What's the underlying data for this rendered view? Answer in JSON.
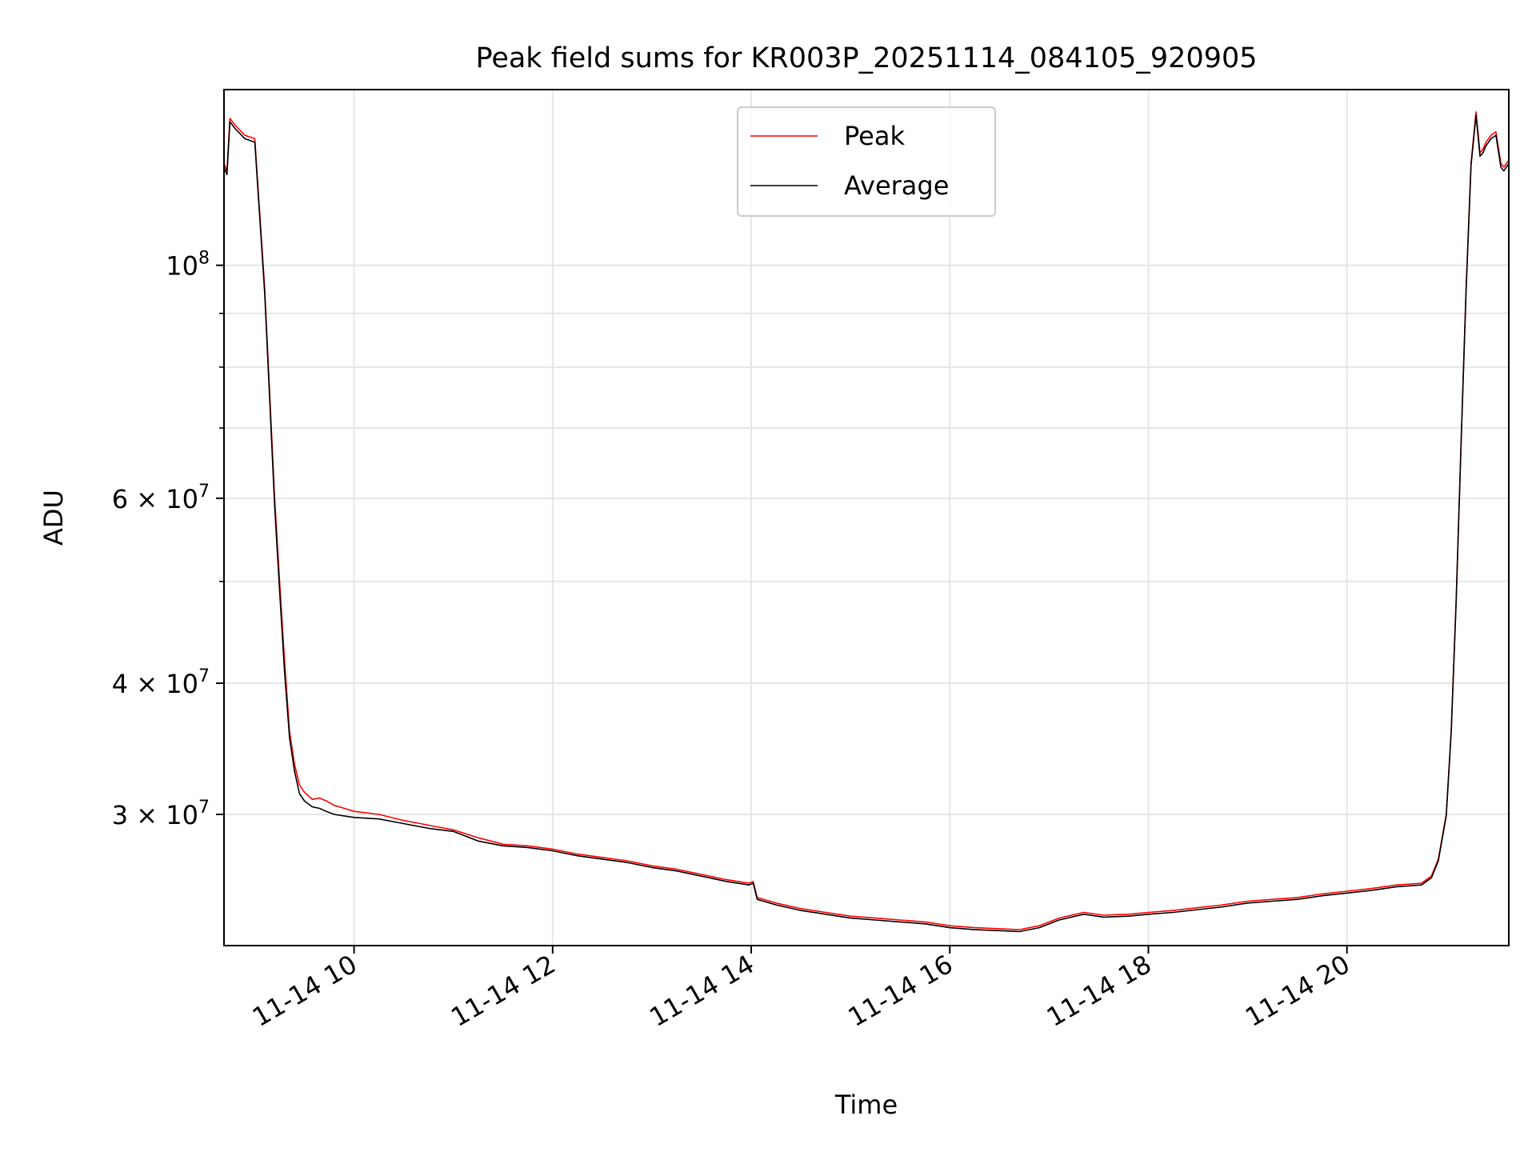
{
  "chart_data": {
    "type": "line",
    "title": "Peak field sums for KR003P_20251114_084105_920905",
    "xlabel": "Time",
    "ylabel": "ADU",
    "yscale": "log",
    "ylim": [
      22500000,
      147000000
    ],
    "x_unit": "hours since 11-14 00:00",
    "xlim": [
      8.69,
      21.63
    ],
    "x_ticks": [
      {
        "value": 10,
        "label": "11-14 10"
      },
      {
        "value": 12,
        "label": "11-14 12"
      },
      {
        "value": 14,
        "label": "11-14 14"
      },
      {
        "value": 16,
        "label": "11-14 16"
      },
      {
        "value": 18,
        "label": "11-14 18"
      },
      {
        "value": 20,
        "label": "11-14 20"
      }
    ],
    "y_ticks": [
      {
        "value": 100000000,
        "mantissa": "",
        "base": "10",
        "exp": "8"
      },
      {
        "value": 60000000,
        "mantissa": "6 × ",
        "base": "10",
        "exp": "7"
      },
      {
        "value": 40000000,
        "mantissa": "4 × ",
        "base": "10",
        "exp": "7"
      },
      {
        "value": 30000000,
        "mantissa": "3 × ",
        "base": "10",
        "exp": "7"
      }
    ],
    "y_minor_ticks": [
      50000000,
      70000000,
      80000000,
      90000000
    ],
    "grid": true,
    "legend": {
      "position": "upper-center",
      "entries": [
        "Peak",
        "Average"
      ]
    },
    "series": [
      {
        "name": "Peak",
        "color": "#ff0000",
        "x": [
          8.69,
          8.72,
          8.75,
          8.8,
          8.9,
          9.0,
          9.1,
          9.2,
          9.25,
          9.3,
          9.35,
          9.4,
          9.45,
          9.5,
          9.58,
          9.65,
          9.72,
          9.8,
          9.9,
          10.0,
          10.25,
          10.5,
          10.75,
          11.0,
          11.25,
          11.5,
          11.75,
          12.0,
          12.25,
          12.5,
          12.75,
          13.0,
          13.25,
          13.5,
          13.75,
          13.98,
          14.02,
          14.06,
          14.25,
          14.5,
          14.75,
          15.0,
          15.25,
          15.5,
          15.75,
          16.0,
          16.25,
          16.5,
          16.7,
          16.9,
          17.1,
          17.35,
          17.55,
          17.8,
          18.0,
          18.25,
          18.5,
          18.75,
          19.0,
          19.25,
          19.5,
          19.75,
          20.0,
          20.25,
          20.5,
          20.75,
          20.85,
          20.92,
          21.0,
          21.05,
          21.1,
          21.15,
          21.2,
          21.25,
          21.3,
          21.34,
          21.37,
          21.4,
          21.45,
          21.5,
          21.55,
          21.58,
          21.63
        ],
        "values": [
          125000000,
          123000000,
          138000000,
          136000000,
          133000000,
          132000000,
          95000000,
          60000000,
          50000000,
          42000000,
          36000000,
          33500000,
          32000000,
          31500000,
          31000000,
          31100000,
          30900000,
          30600000,
          30400000,
          30200000,
          30000000,
          29600000,
          29300000,
          29000000,
          28500000,
          28100000,
          28000000,
          27800000,
          27500000,
          27300000,
          27100000,
          26800000,
          26600000,
          26300000,
          26000000,
          25800000,
          25900000,
          25000000,
          24700000,
          24400000,
          24200000,
          24000000,
          23900000,
          23800000,
          23700000,
          23500000,
          23400000,
          23350000,
          23300000,
          23500000,
          23900000,
          24200000,
          24050000,
          24100000,
          24200000,
          24300000,
          24450000,
          24600000,
          24800000,
          24900000,
          25000000,
          25200000,
          25350000,
          25500000,
          25700000,
          25800000,
          26200000,
          27200000,
          30000000,
          36000000,
          48000000,
          68000000,
          95000000,
          125000000,
          140000000,
          128000000,
          129000000,
          131000000,
          133000000,
          134000000,
          125000000,
          124000000,
          126000000
        ]
      },
      {
        "name": "Average",
        "color": "#000000",
        "x": [
          8.69,
          8.72,
          8.75,
          8.8,
          8.9,
          9.0,
          9.1,
          9.2,
          9.25,
          9.3,
          9.35,
          9.4,
          9.45,
          9.5,
          9.58,
          9.65,
          9.72,
          9.8,
          9.9,
          10.0,
          10.25,
          10.5,
          10.75,
          11.0,
          11.25,
          11.5,
          11.75,
          12.0,
          12.25,
          12.5,
          12.75,
          13.0,
          13.25,
          13.5,
          13.75,
          13.98,
          14.02,
          14.06,
          14.25,
          14.5,
          14.75,
          15.0,
          15.25,
          15.5,
          15.75,
          16.0,
          16.25,
          16.5,
          16.7,
          16.9,
          17.1,
          17.35,
          17.55,
          17.8,
          18.0,
          18.25,
          18.5,
          18.75,
          19.0,
          19.25,
          19.5,
          19.75,
          20.0,
          20.25,
          20.5,
          20.75,
          20.85,
          20.92,
          21.0,
          21.05,
          21.1,
          21.15,
          21.2,
          21.25,
          21.3,
          21.34,
          21.37,
          21.4,
          21.45,
          21.5,
          21.55,
          21.58,
          21.63
        ],
        "values": [
          124000000,
          122000000,
          137000000,
          135000000,
          132000000,
          131000000,
          94000000,
          59000000,
          49000000,
          41000000,
          35500000,
          33000000,
          31400000,
          30900000,
          30500000,
          30400000,
          30200000,
          30000000,
          29900000,
          29800000,
          29700000,
          29400000,
          29100000,
          28900000,
          28300000,
          28000000,
          27900000,
          27700000,
          27400000,
          27200000,
          27000000,
          26700000,
          26500000,
          26200000,
          25900000,
          25700000,
          25800000,
          24900000,
          24600000,
          24300000,
          24100000,
          23900000,
          23800000,
          23700000,
          23600000,
          23400000,
          23300000,
          23250000,
          23200000,
          23400000,
          23800000,
          24100000,
          23950000,
          24000000,
          24100000,
          24200000,
          24350000,
          24500000,
          24700000,
          24800000,
          24900000,
          25100000,
          25250000,
          25400000,
          25600000,
          25700000,
          26100000,
          27100000,
          29900000,
          35900000,
          47800000,
          67800000,
          94500000,
          124500000,
          139000000,
          127000000,
          128000000,
          130000000,
          132000000,
          133000000,
          124000000,
          123000000,
          125000000
        ]
      }
    ]
  }
}
